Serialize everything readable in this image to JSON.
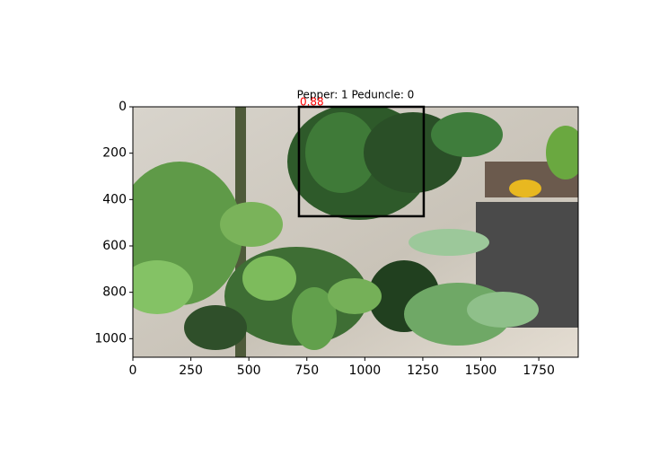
{
  "chart_data": {
    "type": "image",
    "title": "Pepper: 1 Peduncle: 0",
    "xlim": [
      0,
      1920
    ],
    "ylim": [
      1080,
      0
    ],
    "xticks": [
      0,
      250,
      500,
      750,
      1000,
      1250,
      1500,
      1750
    ],
    "yticks": [
      0,
      200,
      400,
      600,
      800,
      1000
    ],
    "boxes": [
      {
        "x": [
          716,
          1254
        ],
        "y": [
          0,
          472
        ],
        "score": 0.88,
        "color": "#000000",
        "score_color": "#ff0000"
      }
    ]
  }
}
